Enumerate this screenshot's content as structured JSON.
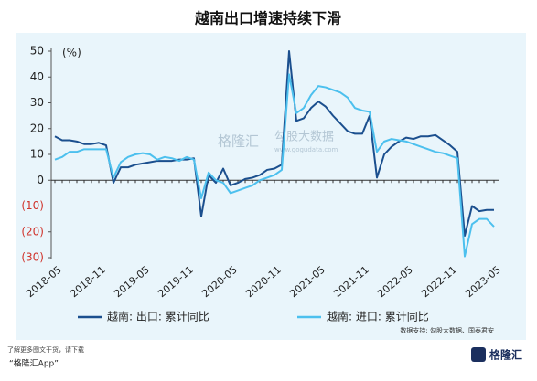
{
  "chart_data": {
    "type": "line",
    "title": "越南出口增速持续下滑",
    "unit_label": "(%)",
    "categories": [
      "2018-05",
      null,
      null,
      null,
      null,
      null,
      "2018-11",
      null,
      null,
      null,
      null,
      null,
      "2019-05",
      null,
      null,
      null,
      null,
      null,
      "2019-11",
      null,
      null,
      null,
      null,
      null,
      "2020-05",
      null,
      null,
      null,
      null,
      null,
      "2020-11",
      null,
      null,
      null,
      null,
      null,
      "2021-05",
      null,
      null,
      null,
      null,
      null,
      "2021-11",
      null,
      null,
      null,
      null,
      null,
      "2022-05",
      null,
      null,
      null,
      null,
      null,
      "2022-11",
      null,
      null,
      null,
      null,
      null,
      "2023-05"
    ],
    "series": [
      {
        "name": "越南: 出口: 累计同比",
        "color": "#1b4f8e",
        "values": [
          17,
          15.5,
          15.5,
          15,
          14,
          14,
          14.5,
          13.5,
          -1,
          5,
          5,
          6,
          6.5,
          7,
          7.5,
          7.5,
          7.5,
          8,
          8,
          8.5,
          -14,
          2,
          -1,
          4.5,
          -2,
          -1,
          0.5,
          1,
          2,
          4,
          4.5,
          6,
          50,
          23,
          24,
          28,
          30.5,
          28.5,
          25,
          22,
          19,
          18,
          18,
          25,
          1,
          10,
          13,
          15,
          16.5,
          16,
          17,
          17,
          17.5,
          15.5,
          13.5,
          11,
          -21.5,
          -10,
          -12,
          -11.5,
          -11.5
        ]
      },
      {
        "name": "越南: 进口: 累计同比",
        "color": "#4cc0ee",
        "values": [
          8,
          9,
          11,
          11,
          12,
          12,
          12,
          12,
          1,
          7,
          9,
          10,
          10.5,
          10,
          8,
          9,
          8.5,
          7.5,
          9,
          8,
          -7,
          3,
          0,
          -1,
          -5,
          -4,
          -3,
          -2,
          0,
          1,
          2,
          4,
          41,
          26,
          28,
          33,
          36.5,
          36,
          35,
          34,
          32,
          28,
          27,
          26.5,
          11,
          15,
          16,
          15.5,
          15,
          14,
          13,
          12,
          11,
          10.5,
          9.5,
          8.5,
          -29.5,
          -17,
          -15,
          -15,
          -18
        ]
      }
    ],
    "ylim": [
      -30,
      50
    ],
    "yticks": [
      50,
      40,
      30,
      20,
      10,
      0,
      {
        "value": -10,
        "label": "(10)"
      },
      {
        "value": -20,
        "label": "(20)"
      },
      {
        "value": -30,
        "label": "(30)"
      }
    ],
    "source": "数据支持: 勾股大数据、国泰君安"
  },
  "watermark": {
    "left": "格隆汇",
    "right": "勾股大数据",
    "url": "www.gogudata.com"
  },
  "footer": {
    "line1": "了解更多图文干货，请下载",
    "line2": "“格隆汇App”",
    "logo": "格隆汇"
  }
}
